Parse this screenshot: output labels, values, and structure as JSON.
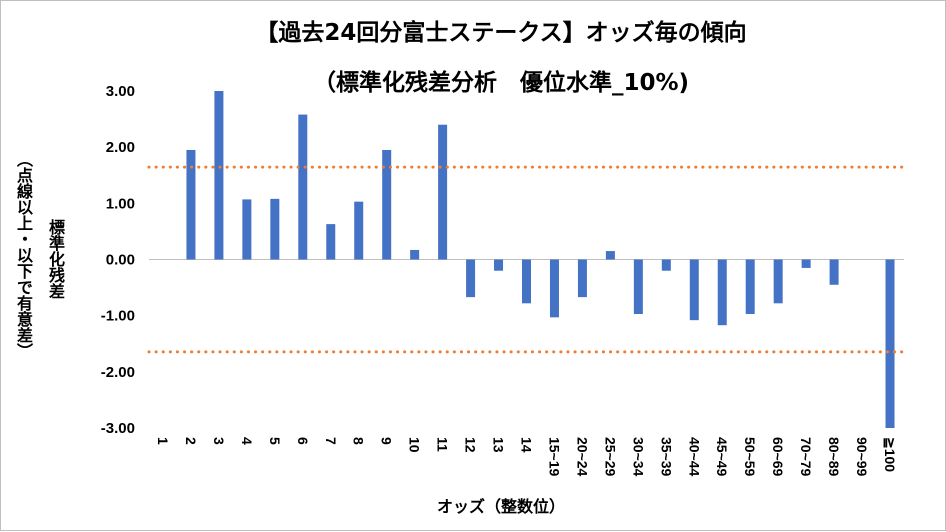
{
  "chart_data": {
    "type": "bar",
    "title": "【過去24回分富士ステークス】オッズ毎の傾向",
    "subtitle": "（標準化残差分析　優位水準_10%)",
    "ylabel_line1": "標準化残差",
    "ylabel_line2": "（点線以上・以下で有意差）",
    "xlabel": "オッズ（整数位）",
    "categories": [
      "1",
      "2",
      "3",
      "4",
      "5",
      "6",
      "7",
      "8",
      "9",
      "10",
      "11",
      "12",
      "13",
      "14",
      "15~19",
      "20~24",
      "25~29",
      "30~34",
      "35~39",
      "40~44",
      "45~49",
      "50~59",
      "60~69",
      "70~79",
      "80~89",
      "90~99",
      "≧100"
    ],
    "values": [
      0.0,
      1.95,
      3.0,
      1.07,
      1.08,
      2.58,
      0.63,
      1.03,
      1.95,
      0.17,
      2.4,
      -0.67,
      -0.2,
      -0.78,
      -1.03,
      -0.67,
      0.15,
      -0.97,
      -0.2,
      -1.08,
      -1.17,
      -0.97,
      -0.78,
      -0.15,
      -0.45,
      0.0,
      -3.0
    ],
    "ylim": [
      -3.0,
      3.0
    ],
    "yticks": [
      "3.00",
      "2.00",
      "1.00",
      "0.00",
      "-1.00",
      "-2.00",
      "-3.00"
    ],
    "threshold_upper": 1.645,
    "threshold_lower": -1.645,
    "colors": {
      "bar": "#4472c4",
      "threshold": "#ed7d31",
      "axis": "#bfbfbf"
    }
  }
}
